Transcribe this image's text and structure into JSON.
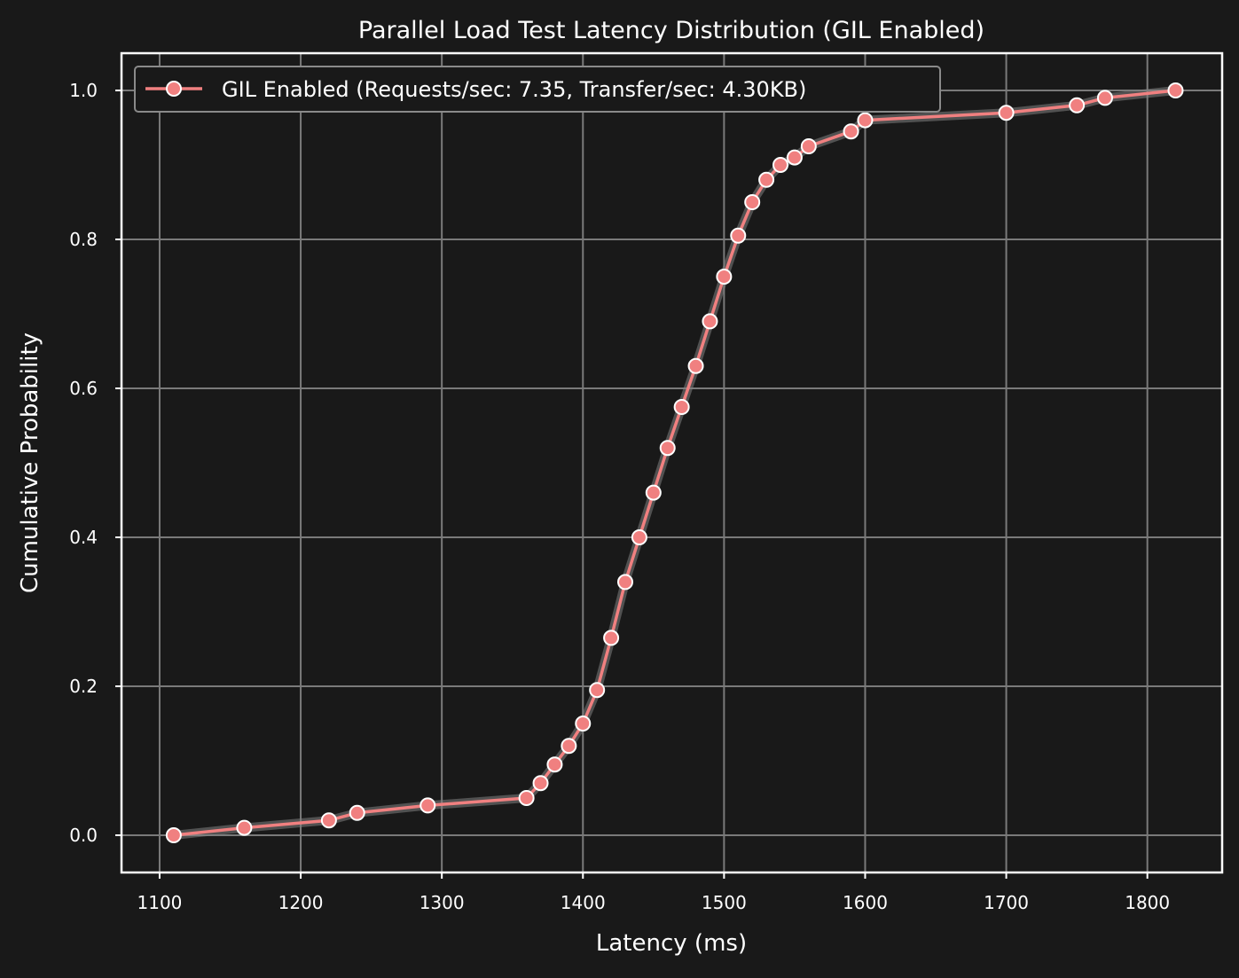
{
  "colors": {
    "background": "#191919",
    "series": "#f08080",
    "marker_edge": "#ffffff",
    "grid": "#7a7a7a",
    "text": "#ffffff"
  },
  "chart_data": {
    "type": "line",
    "title": "Parallel Load Test Latency Distribution (GIL Enabled)",
    "xlabel": "Latency (ms)",
    "ylabel": "Cumulative Probability",
    "xlim": [
      1073,
      1853
    ],
    "ylim": [
      -0.05,
      1.05
    ],
    "xticks": [
      1100,
      1200,
      1300,
      1400,
      1500,
      1600,
      1700,
      1800
    ],
    "yticks": [
      0.0,
      0.2,
      0.4,
      0.6,
      0.8,
      1.0
    ],
    "xtick_labels": [
      "1100",
      "1200",
      "1300",
      "1400",
      "1500",
      "1600",
      "1700",
      "1800"
    ],
    "ytick_labels": [
      "0.0",
      "0.2",
      "0.4",
      "0.6",
      "0.8",
      "1.0"
    ],
    "grid": true,
    "legend_position": "top-left",
    "series": [
      {
        "name": "GIL Enabled (Requests/sec: 7.35, Transfer/sec: 4.30KB)",
        "x": [
          1110,
          1160,
          1220,
          1240,
          1290,
          1360,
          1370,
          1380,
          1390,
          1400,
          1410,
          1420,
          1430,
          1440,
          1450,
          1460,
          1470,
          1480,
          1490,
          1500,
          1510,
          1520,
          1530,
          1540,
          1550,
          1560,
          1590,
          1600,
          1700,
          1750,
          1770,
          1820
        ],
        "y": [
          0.0,
          0.01,
          0.02,
          0.03,
          0.04,
          0.05,
          0.07,
          0.095,
          0.12,
          0.15,
          0.195,
          0.265,
          0.34,
          0.4,
          0.46,
          0.52,
          0.575,
          0.63,
          0.69,
          0.75,
          0.805,
          0.85,
          0.88,
          0.9,
          0.91,
          0.925,
          0.945,
          0.96,
          0.97,
          0.98,
          0.99,
          1.0
        ]
      }
    ]
  }
}
